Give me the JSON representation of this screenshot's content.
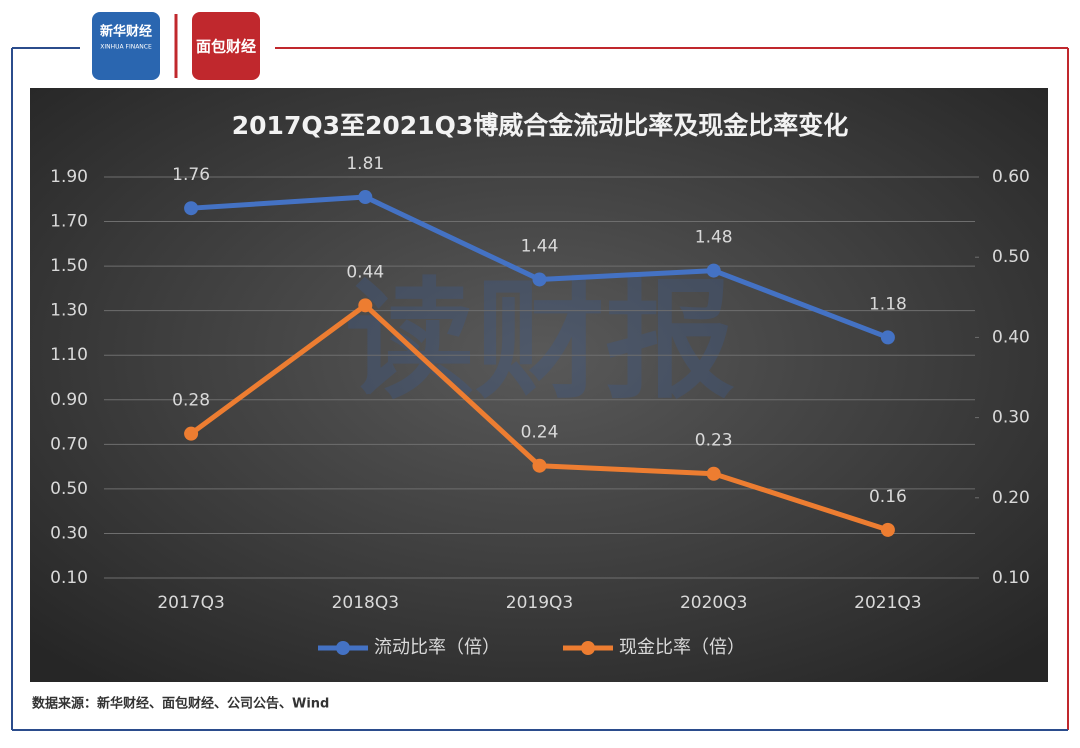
{
  "header": {
    "logo_left": "新华财经",
    "logo_left_sub": "XINHUA FINANCE",
    "logo_right": "面包财经"
  },
  "chart_data": {
    "type": "line",
    "title": "2017Q3至2021Q3博威合金流动比率及现金比率变化",
    "watermark": "读财报",
    "categories": [
      "2017Q3",
      "2018Q3",
      "2019Q3",
      "2020Q3",
      "2021Q3"
    ],
    "series": [
      {
        "name": "流动比率（倍）",
        "color": "#4472c4",
        "values": [
          1.76,
          1.81,
          1.44,
          1.48,
          1.18
        ]
      },
      {
        "name": "现金比率（倍）",
        "color": "#ed7d31",
        "axis": "y2",
        "values": [
          0.28,
          0.44,
          0.24,
          0.23,
          0.16
        ]
      }
    ],
    "ylim": [
      0.1,
      1.9
    ],
    "yticks": [
      {
        "value": 0.1,
        "label": "0.10"
      },
      {
        "value": 0.3,
        "label": "0.30"
      },
      {
        "value": 0.5,
        "label": "0.50"
      },
      {
        "value": 0.7,
        "label": "0.70"
      },
      {
        "value": 0.9,
        "label": "0.90"
      },
      {
        "value": 1.1,
        "label": "1.10"
      },
      {
        "value": 1.3,
        "label": "1.30"
      },
      {
        "value": 1.5,
        "label": "1.50"
      },
      {
        "value": 1.7,
        "label": "1.70"
      },
      {
        "value": 1.9,
        "label": "1.90"
      }
    ],
    "y2lim": [
      0.1,
      0.6
    ],
    "y2ticks": [
      {
        "value": 0.1,
        "label": "0.10"
      },
      {
        "value": 0.2,
        "label": "0.20"
      },
      {
        "value": 0.3,
        "label": "0.30"
      },
      {
        "value": 0.4,
        "label": "0.40"
      },
      {
        "value": 0.5,
        "label": "0.50"
      },
      {
        "value": 0.6,
        "label": "0.60"
      }
    ],
    "grid": true,
    "legend": "bottom",
    "source": "数据来源：新华财经、面包财经、公司公告、Wind"
  }
}
